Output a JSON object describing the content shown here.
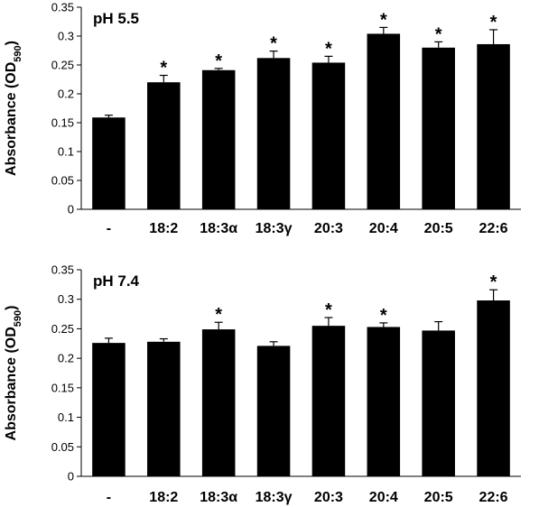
{
  "chart_data": [
    {
      "type": "bar",
      "title": "pH 5.5",
      "ylabel_main": "Absorbance (OD",
      "ylabel_sub": "590",
      "ylabel_close": ")",
      "ylim": [
        0,
        0.35
      ],
      "yticks": [
        "0",
        "0.05",
        "0.1",
        "0.15",
        "0.2",
        "0.25",
        "0.3",
        "0.35"
      ],
      "categories": [
        "-",
        "18:2",
        "18:3α",
        "18:3γ",
        "20:3",
        "20:4",
        "20:5",
        "22:6"
      ],
      "values": [
        0.159,
        0.22,
        0.241,
        0.262,
        0.254,
        0.304,
        0.28,
        0.286
      ],
      "errors": [
        0.004,
        0.012,
        0.003,
        0.012,
        0.011,
        0.011,
        0.01,
        0.025
      ],
      "significant": [
        false,
        true,
        true,
        true,
        true,
        true,
        true,
        true
      ],
      "sig_marker": "*",
      "bar_color": "#000000"
    },
    {
      "type": "bar",
      "title": "pH 7.4",
      "ylabel_main": "Absorbance (OD",
      "ylabel_sub": "590",
      "ylabel_close": ")",
      "ylim": [
        0,
        0.35
      ],
      "yticks": [
        "0",
        "0.05",
        "0.1",
        "0.15",
        "0.2",
        "0.25",
        "0.3",
        "0.35"
      ],
      "categories": [
        "-",
        "18:2",
        "18:3α",
        "18:3γ",
        "20:3",
        "20:4",
        "20:5",
        "22:6"
      ],
      "values": [
        0.226,
        0.228,
        0.249,
        0.221,
        0.255,
        0.253,
        0.247,
        0.298
      ],
      "errors": [
        0.008,
        0.005,
        0.012,
        0.007,
        0.014,
        0.007,
        0.015,
        0.018
      ],
      "significant": [
        false,
        false,
        true,
        false,
        true,
        true,
        false,
        true
      ],
      "sig_marker": "*",
      "bar_color": "#000000"
    }
  ]
}
